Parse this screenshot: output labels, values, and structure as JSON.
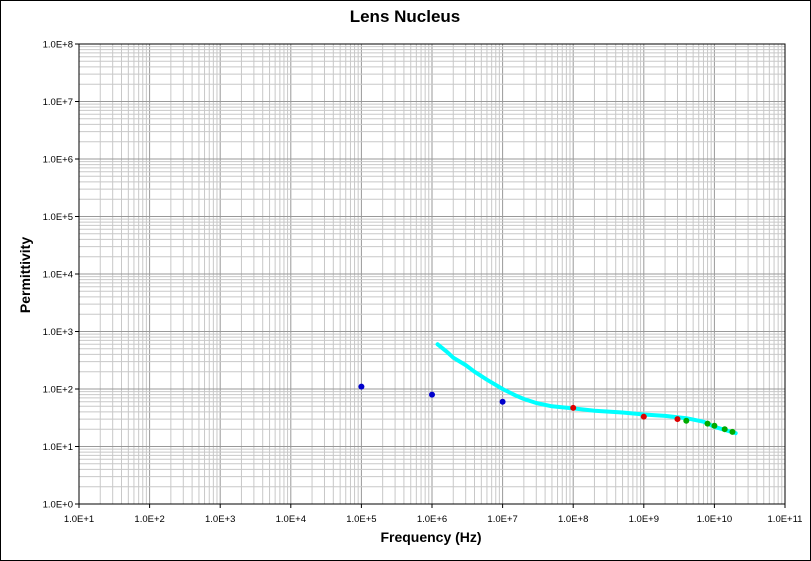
{
  "chart_data": {
    "type": "scatter",
    "title": "Lens Nucleus",
    "xlabel": "Frequency (Hz)",
    "ylabel": "Permittivity",
    "x_scale": "log",
    "y_scale": "log",
    "xlim": [
      10.0,
      100000000000.0
    ],
    "ylim": [
      1,
      100000000.0
    ],
    "grid": true,
    "x_tick_labels": [
      "1.0E+1",
      "1.0E+2",
      "1.0E+3",
      "1.0E+4",
      "1.0E+5",
      "1.0E+6",
      "1.0E+7",
      "1.0E+8",
      "1.0E+9",
      "1.0E+10",
      "1.0E+11"
    ],
    "y_tick_labels": [
      "1.0E+0",
      "1.0E+1",
      "1.0E+2",
      "1.0E+3",
      "1.0E+4",
      "1.0E+5",
      "1.0E+6",
      "1.0E+7",
      "1.0E+8"
    ],
    "series": [
      {
        "kind": "line",
        "color": "#00ffff",
        "points": [
          [
            1200000.0,
            600
          ],
          [
            1600000.0,
            450
          ],
          [
            2000000.0,
            350
          ],
          [
            3000000.0,
            260
          ],
          [
            4000000.0,
            200
          ],
          [
            6000000.0,
            145
          ],
          [
            10000000.0,
            100
          ],
          [
            15000000.0,
            78
          ],
          [
            20000000.0,
            67
          ],
          [
            30000000.0,
            57
          ],
          [
            50000000.0,
            50
          ],
          [
            100000000.0,
            46
          ],
          [
            200000000.0,
            42
          ],
          [
            500000000.0,
            39
          ],
          [
            1000000000.0,
            36
          ],
          [
            2000000000.0,
            34
          ],
          [
            4000000000.0,
            31
          ],
          [
            7000000000.0,
            27
          ],
          [
            10000000000.0,
            22
          ],
          [
            15000000000.0,
            19
          ],
          [
            20000000000.0,
            17
          ]
        ]
      },
      {
        "kind": "points",
        "color": "#0000cc",
        "points": [
          [
            100000.0,
            110
          ],
          [
            1000000.0,
            80
          ],
          [
            10000000.0,
            60
          ]
        ]
      },
      {
        "kind": "points",
        "color": "#dd0000",
        "points": [
          [
            100000000.0,
            47
          ],
          [
            1000000000.0,
            33
          ],
          [
            3000000000.0,
            30
          ]
        ]
      },
      {
        "kind": "points",
        "color": "#00aa00",
        "points": [
          [
            4000000000.0,
            28
          ],
          [
            8000000000.0,
            25
          ],
          [
            10000000000.0,
            23
          ],
          [
            14000000000.0,
            20
          ],
          [
            18000000000.0,
            18
          ]
        ]
      }
    ]
  }
}
